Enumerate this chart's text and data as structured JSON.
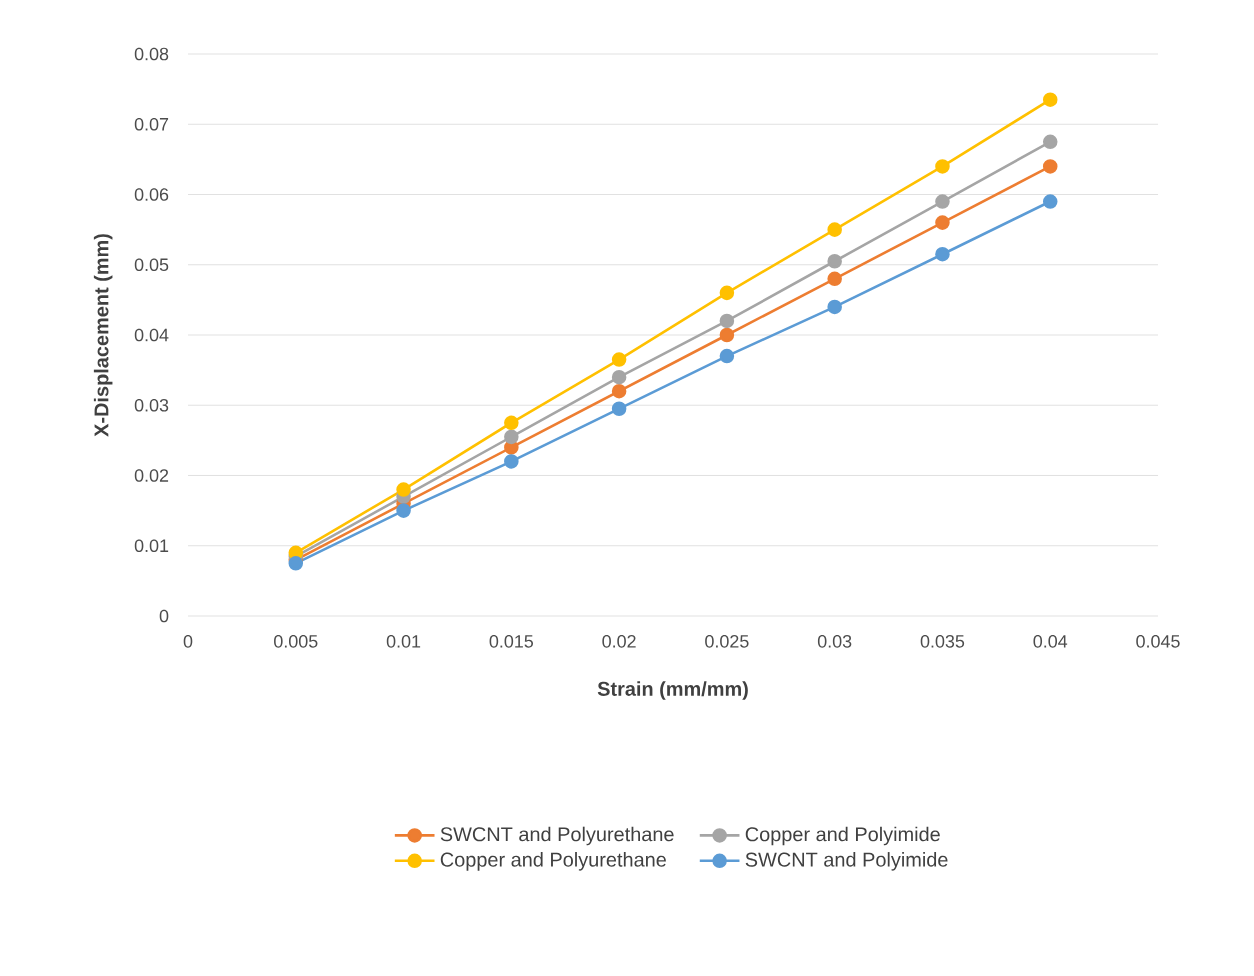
{
  "chart_data": {
    "type": "line",
    "xlabel": "Strain (mm/mm)",
    "ylabel": "X-Displacement (mm)",
    "x": [
      0.005,
      0.01,
      0.015,
      0.02,
      0.025,
      0.03,
      0.035,
      0.04
    ],
    "series": [
      {
        "name": "SWCNT and Polyurethane",
        "color": "#ed7d31",
        "values": [
          0.008,
          0.016,
          0.024,
          0.032,
          0.04,
          0.048,
          0.056,
          0.064
        ]
      },
      {
        "name": "Copper and Polyimide",
        "color": "#a5a5a5",
        "values": [
          0.0085,
          0.017,
          0.0255,
          0.034,
          0.042,
          0.0505,
          0.059,
          0.0675
        ]
      },
      {
        "name": "Copper and Polyurethane",
        "color": "#ffc000",
        "values": [
          0.009,
          0.018,
          0.0275,
          0.0365,
          0.046,
          0.055,
          0.064,
          0.0735
        ]
      },
      {
        "name": "SWCNT and Polyimide",
        "color": "#5b9bd5",
        "values": [
          0.0075,
          0.015,
          0.022,
          0.0295,
          0.037,
          0.044,
          0.0515,
          0.059
        ]
      }
    ],
    "xlim": [
      0,
      0.045
    ],
    "xticks": [
      0,
      0.005,
      0.01,
      0.015,
      0.02,
      0.025,
      0.03,
      0.035,
      0.04,
      0.045
    ],
    "ylim": [
      0,
      0.08
    ],
    "yticks": [
      0,
      0.01,
      0.02,
      0.03,
      0.04,
      0.05,
      0.06,
      0.07,
      0.08
    ],
    "grid": "y",
    "legend": "bottom",
    "marker": "circle",
    "line_style": "solid"
  }
}
